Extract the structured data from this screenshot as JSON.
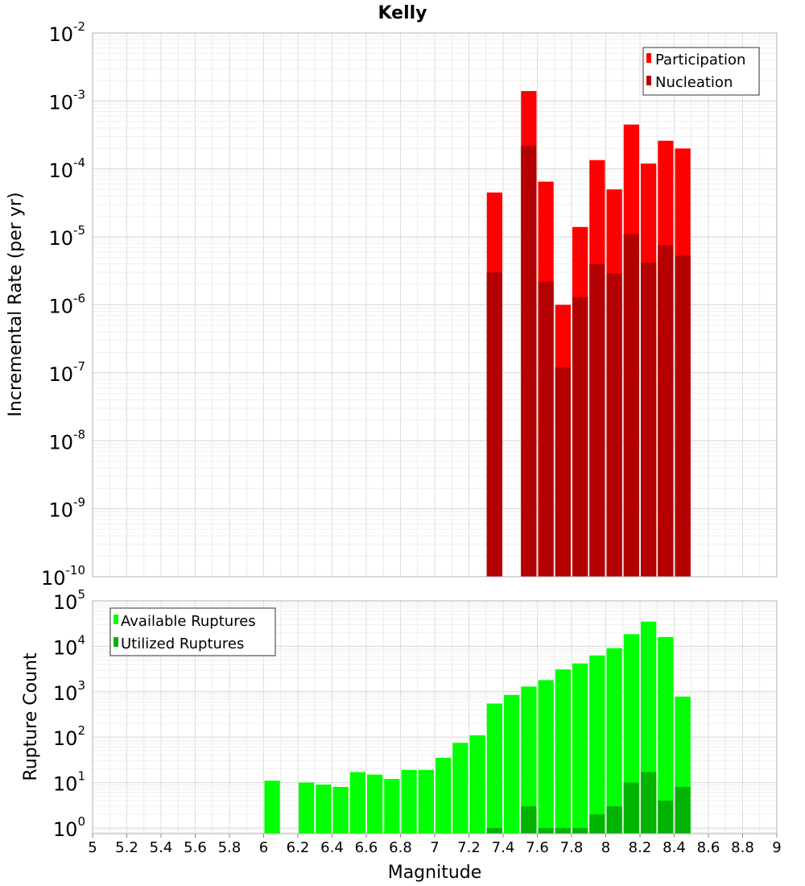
{
  "chart_data": [
    {
      "type": "bar",
      "title": "Kelly",
      "xlabel": "",
      "ylabel": "Incremental Rate (per yr)",
      "yscale": "log",
      "ylim": [
        1e-10,
        0.01
      ],
      "xlim": [
        5,
        9
      ],
      "ytick_base": "10",
      "ytick_exponents": [
        "-10",
        "-9",
        "-8",
        "-7",
        "-6",
        "-5",
        "-4",
        "-3",
        "-2"
      ],
      "legend_position": "top-right",
      "series": [
        {
          "name": "Participation",
          "color": "#ff0000",
          "x": [
            7.35,
            7.55,
            7.65,
            7.75,
            7.85,
            7.95,
            8.05,
            8.15,
            8.25,
            8.35,
            8.45
          ],
          "values": [
            4.5e-05,
            0.0014,
            6.5e-05,
            1e-06,
            1.4e-05,
            0.000135,
            5e-05,
            0.00045,
            0.00012,
            0.00026,
            0.0002
          ]
        },
        {
          "name": "Nucleation",
          "color": "#b30000",
          "x": [
            7.35,
            7.55,
            7.65,
            7.75,
            7.85,
            7.95,
            8.05,
            8.15,
            8.25,
            8.35,
            8.45
          ],
          "values": [
            3e-06,
            0.00022,
            2.2e-06,
            1.2e-07,
            1.3e-06,
            4e-06,
            2.9e-06,
            1.1e-05,
            4.2e-06,
            7.5e-06,
            5.3e-06
          ]
        }
      ]
    },
    {
      "type": "bar",
      "xlabel": "Magnitude",
      "ylabel": "Rupture Count",
      "yscale": "log",
      "ylim": [
        0.75,
        100000
      ],
      "xlim": [
        5,
        9
      ],
      "ytick_base": "10",
      "ytick_exponents": [
        "0",
        "1",
        "2",
        "3",
        "4",
        "5"
      ],
      "xtick_labels": [
        "5",
        "5.2",
        "5.4",
        "5.6",
        "5.8",
        "6",
        "6.2",
        "6.4",
        "6.6",
        "6.8",
        "7",
        "7.2",
        "7.4",
        "7.6",
        "7.8",
        "8",
        "8.2",
        "8.4",
        "8.6",
        "8.8",
        "9"
      ],
      "legend_position": "top-left",
      "series": [
        {
          "name": "Available Ruptures",
          "color": "#00ff00",
          "x": [
            6.05,
            6.25,
            6.35,
            6.45,
            6.55,
            6.65,
            6.75,
            6.85,
            6.95,
            7.05,
            7.15,
            7.25,
            7.35,
            7.45,
            7.55,
            7.65,
            7.75,
            7.85,
            7.95,
            8.05,
            8.15,
            8.25,
            8.35,
            8.45
          ],
          "values": [
            11,
            10,
            9,
            8,
            17,
            15,
            12,
            19,
            19,
            35,
            75,
            110,
            550,
            850,
            1300,
            1800,
            3100,
            4200,
            6300,
            9100,
            18500,
            35000,
            16000,
            780
          ]
        },
        {
          "name": "Utilized Ruptures",
          "color": "#00b300",
          "x": [
            7.35,
            7.55,
            7.65,
            7.75,
            7.85,
            7.95,
            8.05,
            8.15,
            8.25,
            8.35,
            8.45
          ],
          "values": [
            1,
            3,
            1,
            1,
            1,
            2,
            3,
            10,
            17,
            4,
            8
          ]
        }
      ]
    }
  ]
}
